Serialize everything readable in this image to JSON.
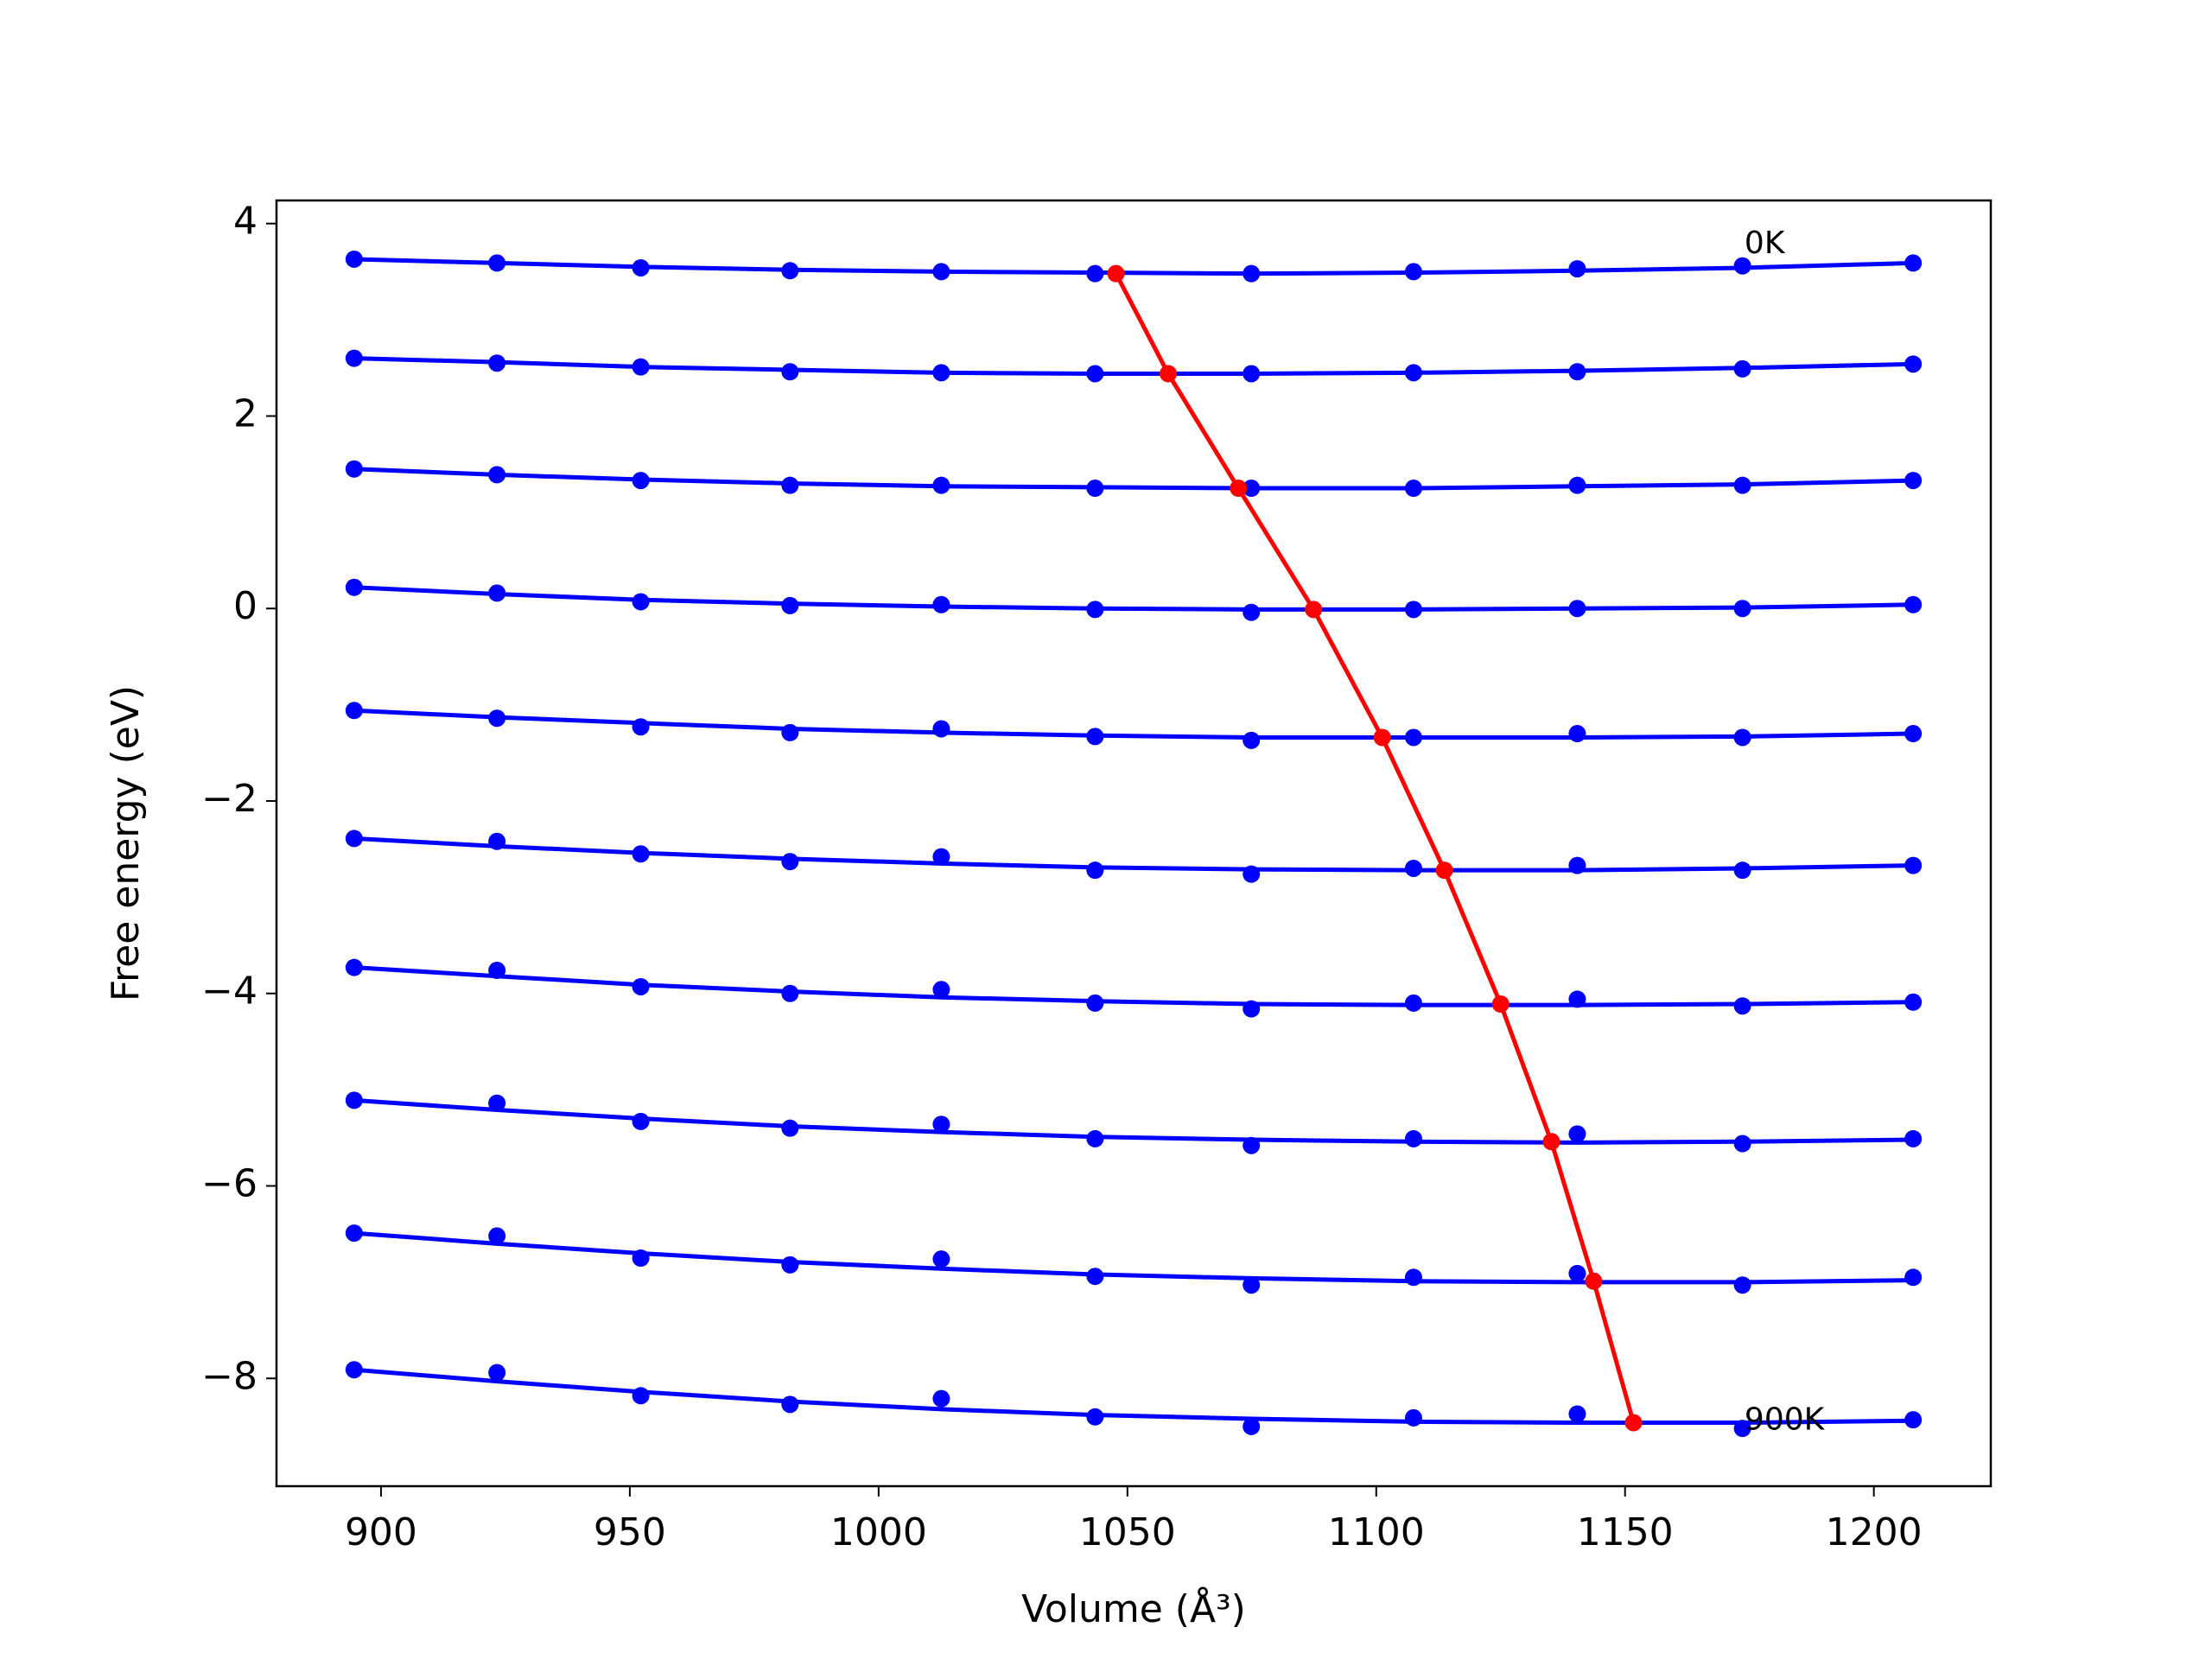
{
  "chart_data": {
    "type": "line",
    "xlabel": "Volume (Å³)",
    "ylabel": "Free energy (eV)",
    "x": [
      894.6,
      923.3,
      952.2,
      982.2,
      1012.6,
      1043.5,
      1074.9,
      1107.5,
      1140.4,
      1173.6,
      1207.9
    ],
    "xlim": [
      879.0,
      1223.5
    ],
    "xticks": [
      900,
      950,
      1000,
      1050,
      1100,
      1150,
      1200
    ],
    "ylim": [
      -9.12,
      4.24
    ],
    "yticks": [
      {
        "value": -8,
        "label": "−8"
      },
      {
        "value": -6,
        "label": "−6"
      },
      {
        "value": -4,
        "label": "−4"
      },
      {
        "value": -2,
        "label": "−2"
      },
      0,
      2,
      4
    ],
    "series": [
      {
        "color": "#0000ff",
        "values": [
          3.63,
          3.59,
          3.54,
          3.51,
          3.5,
          3.48,
          3.48,
          3.5,
          3.53,
          3.56,
          3.59
        ],
        "fit": [
          3.63,
          3.59,
          3.55,
          3.52,
          3.5,
          3.49,
          3.48,
          3.49,
          3.51,
          3.54,
          3.59
        ]
      },
      {
        "color": "#0000ff",
        "values": [
          2.6,
          2.55,
          2.51,
          2.46,
          2.45,
          2.44,
          2.44,
          2.45,
          2.46,
          2.49,
          2.54
        ],
        "fit": [
          2.6,
          2.56,
          2.51,
          2.48,
          2.45,
          2.44,
          2.44,
          2.45,
          2.47,
          2.5,
          2.54
        ]
      },
      {
        "color": "#0000ff",
        "values": [
          1.45,
          1.39,
          1.33,
          1.28,
          1.28,
          1.25,
          1.25,
          1.25,
          1.28,
          1.28,
          1.33
        ],
        "fit": [
          1.45,
          1.39,
          1.34,
          1.3,
          1.27,
          1.26,
          1.25,
          1.25,
          1.27,
          1.29,
          1.33
        ]
      },
      {
        "color": "#0000ff",
        "values": [
          0.22,
          0.16,
          0.07,
          0.03,
          0.04,
          -0.01,
          -0.04,
          -0.01,
          0.0,
          0.0,
          0.04
        ],
        "fit": [
          0.22,
          0.15,
          0.09,
          0.05,
          0.02,
          0.0,
          -0.01,
          -0.01,
          0.0,
          0.01,
          0.04
        ]
      },
      {
        "color": "#0000ff",
        "values": [
          -1.06,
          -1.14,
          -1.23,
          -1.29,
          -1.25,
          -1.33,
          -1.37,
          -1.34,
          -1.3,
          -1.34,
          -1.3
        ],
        "fit": [
          -1.06,
          -1.13,
          -1.19,
          -1.25,
          -1.29,
          -1.32,
          -1.34,
          -1.34,
          -1.34,
          -1.33,
          -1.3
        ]
      },
      {
        "color": "#0000ff",
        "values": [
          -2.39,
          -2.42,
          -2.55,
          -2.63,
          -2.58,
          -2.72,
          -2.76,
          -2.7,
          -2.67,
          -2.72,
          -2.67
        ],
        "fit": [
          -2.39,
          -2.47,
          -2.54,
          -2.6,
          -2.65,
          -2.69,
          -2.71,
          -2.72,
          -2.72,
          -2.7,
          -2.67
        ]
      },
      {
        "color": "#0000ff",
        "values": [
          -3.73,
          -3.76,
          -3.93,
          -4.0,
          -3.96,
          -4.1,
          -4.16,
          -4.1,
          -4.06,
          -4.13,
          -4.09
        ],
        "fit": [
          -3.73,
          -3.82,
          -3.91,
          -3.98,
          -4.04,
          -4.08,
          -4.11,
          -4.12,
          -4.12,
          -4.11,
          -4.09
        ]
      },
      {
        "color": "#0000ff",
        "values": [
          -5.11,
          -5.14,
          -5.33,
          -5.4,
          -5.36,
          -5.51,
          -5.58,
          -5.51,
          -5.46,
          -5.56,
          -5.51
        ],
        "fit": [
          -5.11,
          -5.21,
          -5.3,
          -5.38,
          -5.44,
          -5.49,
          -5.52,
          -5.54,
          -5.55,
          -5.54,
          -5.52
        ]
      },
      {
        "color": "#0000ff",
        "values": [
          -6.49,
          -6.52,
          -6.75,
          -6.82,
          -6.76,
          -6.94,
          -7.03,
          -6.95,
          -6.91,
          -7.03,
          -6.95
        ],
        "fit": [
          -6.49,
          -6.6,
          -6.7,
          -6.79,
          -6.86,
          -6.92,
          -6.96,
          -6.99,
          -7.0,
          -7.0,
          -6.98
        ]
      },
      {
        "color": "#0000ff",
        "values": [
          -7.91,
          -7.94,
          -8.18,
          -8.27,
          -8.21,
          -8.4,
          -8.5,
          -8.41,
          -8.37,
          -8.52,
          -8.43
        ],
        "fit": [
          -7.91,
          -8.03,
          -8.14,
          -8.24,
          -8.32,
          -8.38,
          -8.42,
          -8.45,
          -8.46,
          -8.46,
          -8.44
        ]
      }
    ],
    "minima": {
      "color": "#ff0000",
      "x": [
        1047.7,
        1058.2,
        1072.3,
        1087.4,
        1101.2,
        1113.7,
        1125.0,
        1135.2,
        1143.7,
        1151.7
      ],
      "values": [
        3.48,
        2.44,
        1.25,
        -0.01,
        -1.34,
        -2.72,
        -4.11,
        -5.54,
        -6.99,
        -8.46
      ]
    },
    "annotations": [
      {
        "text": "0K",
        "x": 1174,
        "y": 3.78
      },
      {
        "text": "900K",
        "x": 1174,
        "y": -8.44
      }
    ]
  }
}
